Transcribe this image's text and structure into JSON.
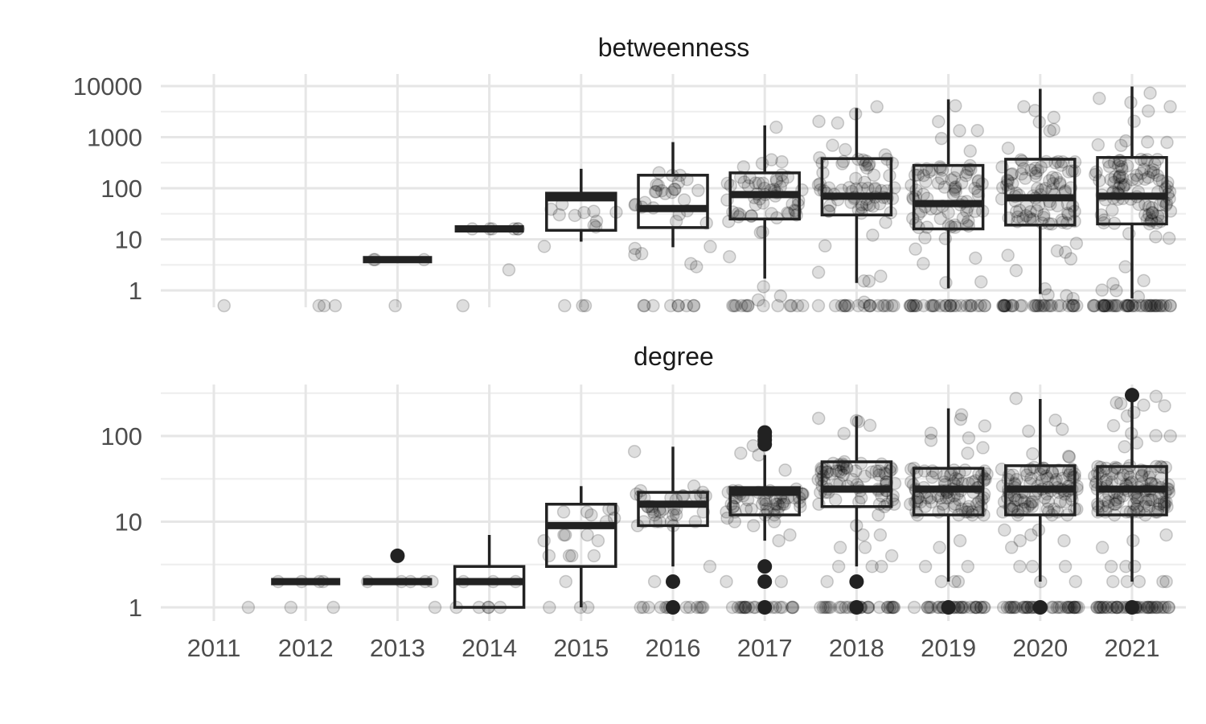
{
  "chart_data": [
    {
      "type": "boxplot",
      "panel": "betweenness",
      "title": "betweenness",
      "xlabel": "",
      "ylabel": "",
      "y_scale": "log10",
      "ylim": [
        0.5,
        10000
      ],
      "y_ticks": [
        1,
        10,
        100,
        1000,
        10000
      ],
      "y_tick_labels": [
        "1",
        "10",
        "100",
        "1000",
        "10000"
      ],
      "categories": [
        "2011",
        "2012",
        "2013",
        "2014",
        "2015",
        "2016",
        "2017",
        "2018",
        "2019",
        "2020",
        "2021"
      ],
      "boxes": [
        null,
        null,
        {
          "q1": 4,
          "median": 4,
          "q3": 4,
          "low": 4,
          "high": 4
        },
        {
          "q1": 16,
          "median": 16,
          "q3": 16,
          "low": 16,
          "high": 16
        },
        {
          "q1": 15,
          "median": 65,
          "q3": 80,
          "low": 9,
          "high": 240
        },
        {
          "q1": 17,
          "median": 40,
          "q3": 180,
          "low": 7,
          "high": 800
        },
        {
          "q1": 25,
          "median": 75,
          "q3": 200,
          "low": 1.7,
          "high": 1700
        },
        {
          "q1": 30,
          "median": 70,
          "q3": 380,
          "low": 1.4,
          "high": 3700
        },
        {
          "q1": 16,
          "median": 50,
          "q3": 280,
          "low": 1.1,
          "high": 5500
        },
        {
          "q1": 19,
          "median": 65,
          "q3": 370,
          "low": 0.85,
          "high": 8800
        },
        {
          "q1": 20,
          "median": 70,
          "q3": 400,
          "low": 0.7,
          "high": 9800
        }
      ],
      "outliers": [
        [],
        [],
        [],
        [],
        [],
        [],
        [],
        [],
        [],
        [],
        []
      ],
      "jitter_points_per_year": [
        1,
        3,
        4,
        8,
        14,
        40,
        70,
        90,
        110,
        130,
        150
      ],
      "jitter_range": [
        [
          0.5,
          0.5
        ],
        [
          0.5,
          0.5
        ],
        [
          0.5,
          4
        ],
        [
          0.5,
          16
        ],
        [
          0.5,
          250
        ],
        [
          0.5,
          900
        ],
        [
          0.5,
          1800
        ],
        [
          0.5,
          4000
        ],
        [
          0.5,
          6000
        ],
        [
          0.5,
          9000
        ],
        [
          0.5,
          10000
        ]
      ]
    },
    {
      "type": "boxplot",
      "panel": "degree",
      "title": "degree",
      "xlabel": "",
      "ylabel": "",
      "y_scale": "log10",
      "ylim": [
        0.8,
        380
      ],
      "y_ticks": [
        1,
        10,
        100
      ],
      "y_tick_labels": [
        "1",
        "10",
        "100"
      ],
      "categories": [
        "2011",
        "2012",
        "2013",
        "2014",
        "2015",
        "2016",
        "2017",
        "2018",
        "2019",
        "2020",
        "2021"
      ],
      "boxes": [
        null,
        {
          "q1": 2,
          "median": 2,
          "q3": 2,
          "low": 2,
          "high": 2
        },
        {
          "q1": 2,
          "median": 2,
          "q3": 2,
          "low": 2,
          "high": 2
        },
        {
          "q1": 1,
          "median": 2,
          "q3": 3,
          "low": 1,
          "high": 7
        },
        {
          "q1": 3,
          "median": 9,
          "q3": 16,
          "low": 1,
          "high": 26
        },
        {
          "q1": 9,
          "median": 16,
          "q3": 22,
          "low": 3,
          "high": 75
        },
        {
          "q1": 12,
          "median": 22,
          "q3": 25,
          "low": 6,
          "high": 60
        },
        {
          "q1": 15,
          "median": 24,
          "q3": 50,
          "low": 3,
          "high": 170
        },
        {
          "q1": 12,
          "median": 24,
          "q3": 42,
          "low": 2,
          "high": 210
        },
        {
          "q1": 12,
          "median": 24,
          "q3": 45,
          "low": 2,
          "high": 270
        },
        {
          "q1": 12,
          "median": 24,
          "q3": 44,
          "low": 2,
          "high": 300
        }
      ],
      "outliers": [
        [],
        [],
        [
          4
        ],
        [],
        [],
        [
          1,
          2
        ],
        [
          1,
          2,
          3,
          80,
          90,
          100,
          110
        ],
        [
          1,
          2
        ],
        [
          1
        ],
        [
          1
        ],
        [
          1,
          300
        ]
      ],
      "jitter_points_per_year": [
        1,
        6,
        6,
        8,
        20,
        50,
        80,
        110,
        130,
        150,
        170
      ],
      "jitter_range": [
        [
          0.8,
          0.8
        ],
        [
          0.8,
          2
        ],
        [
          0.8,
          4
        ],
        [
          0.8,
          7
        ],
        [
          0.8,
          26
        ],
        [
          0.8,
          80
        ],
        [
          0.8,
          120
        ],
        [
          0.8,
          170
        ],
        [
          0.8,
          220
        ],
        [
          0.8,
          280
        ],
        [
          0.8,
          300
        ]
      ]
    }
  ]
}
